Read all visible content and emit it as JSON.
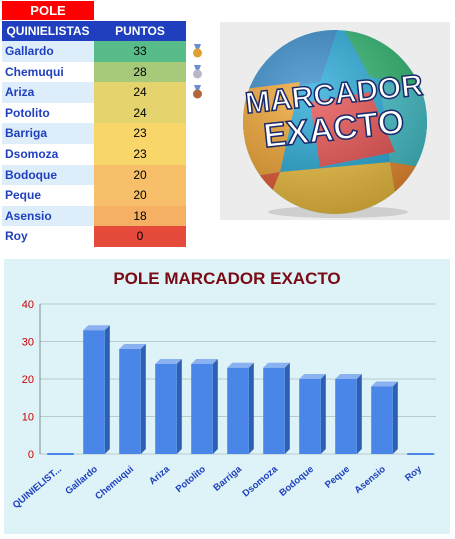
{
  "table": {
    "title": "POLE",
    "col_name": "QUINIELISTAS",
    "col_points": "PUNTOS",
    "rows": [
      {
        "name": "Gallardo",
        "points": "33",
        "color": "#57bb8a"
      },
      {
        "name": "Chemuqui",
        "points": "28",
        "color": "#a6c97a"
      },
      {
        "name": "Ariza",
        "points": "24",
        "color": "#e5d46e"
      },
      {
        "name": "Potolito",
        "points": "24",
        "color": "#e5d46e"
      },
      {
        "name": "Barriga",
        "points": "23",
        "color": "#f8d66a"
      },
      {
        "name": "Dsomoza",
        "points": "23",
        "color": "#f8d66a"
      },
      {
        "name": "Bodoque",
        "points": "20",
        "color": "#f7bf69"
      },
      {
        "name": "Peque",
        "points": "20",
        "color": "#f7bf69"
      },
      {
        "name": "Asensio",
        "points": "18",
        "color": "#f5b063"
      },
      {
        "name": "Roy",
        "points": "0",
        "color": "#e64a3a"
      }
    ],
    "medals": [
      {
        "name": "gold-medal-icon",
        "color": "#e0a030"
      },
      {
        "name": "silver-medal-icon",
        "color": "#b8b8c8"
      },
      {
        "name": "bronze-medal-icon",
        "color": "#b0673a"
      }
    ]
  },
  "ball": {
    "line1": "MARCADOR",
    "line2": "EXACTO"
  },
  "chart_data": {
    "type": "bar",
    "title": "POLE MARCADOR EXACTO",
    "categories": [
      "QUINIELIST...",
      "Gallardo",
      "Chemuqui",
      "Ariza",
      "Potolito",
      "Barriga",
      "Dsomoza",
      "Bodoque",
      "Peque",
      "Asensio",
      "Roy"
    ],
    "values": [
      0,
      33,
      28,
      24,
      24,
      23,
      23,
      20,
      20,
      18,
      0
    ],
    "ylim": [
      0,
      40
    ],
    "yticks": [
      0,
      10,
      20,
      30,
      40
    ],
    "grid": true,
    "bar_color": "#4a86e8",
    "tick_color": "#cc0000",
    "label_color": "#1f3fbf"
  }
}
